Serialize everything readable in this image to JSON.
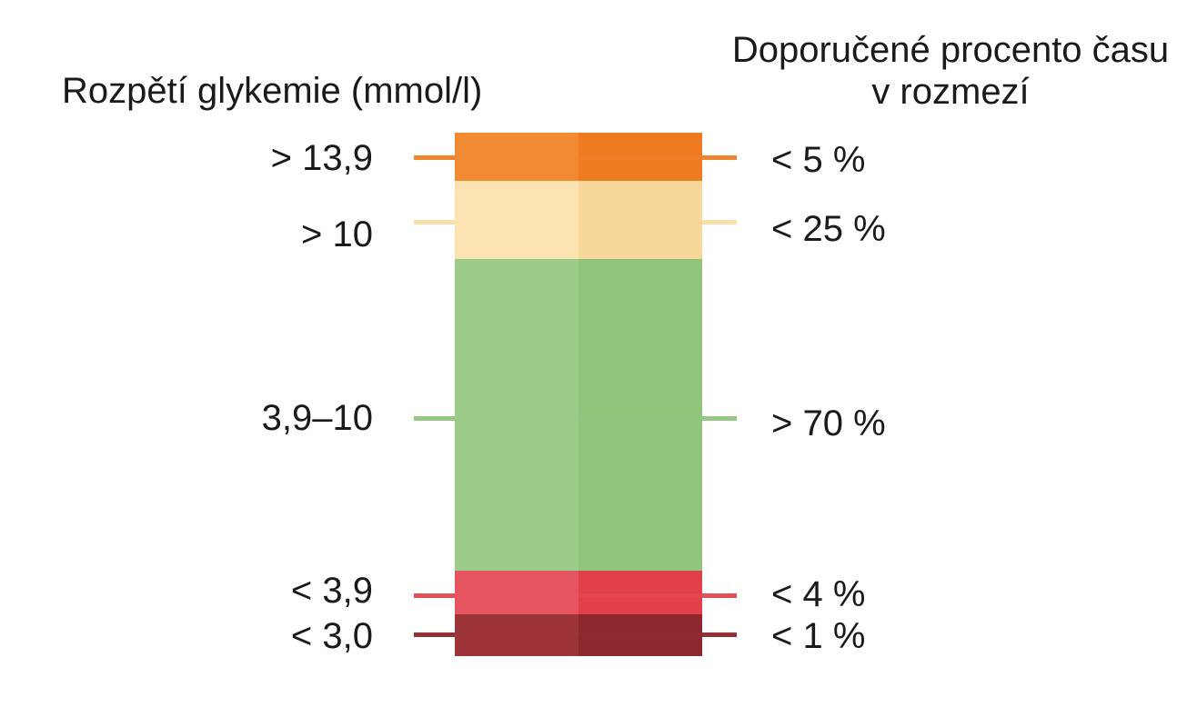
{
  "header": {
    "left_title": "Rozpětí glykemie (mmol/l)",
    "right_title_line1": "Doporučené procento času",
    "right_title_line2": "v rozmezí"
  },
  "ranges": [
    {
      "glucose": "> 13,9",
      "percent": "< 5 %",
      "color_left": "#F08A33",
      "color_right": "#EE7A22",
      "tick_color": "#EE8530"
    },
    {
      "glucose": "> 10",
      "percent": "< 25 %",
      "color_left": "#FBE4B2",
      "color_right": "#F8D89A",
      "tick_color": "#F9DFA8"
    },
    {
      "glucose": "3,9–10",
      "percent": "> 70 %",
      "color_left": "#9DCB8A",
      "color_right": "#8FC47A",
      "tick_color": "#96C784"
    },
    {
      "glucose": "< 3,9",
      "percent": "< 4 %",
      "color_left": "#E65660",
      "color_right": "#E24049",
      "tick_color": "#E35058"
    },
    {
      "glucose": "< 3,0",
      "percent": "< 1 %",
      "color_left": "#9C343A",
      "color_right": "#8C272E",
      "tick_color": "#952E35"
    }
  ]
}
